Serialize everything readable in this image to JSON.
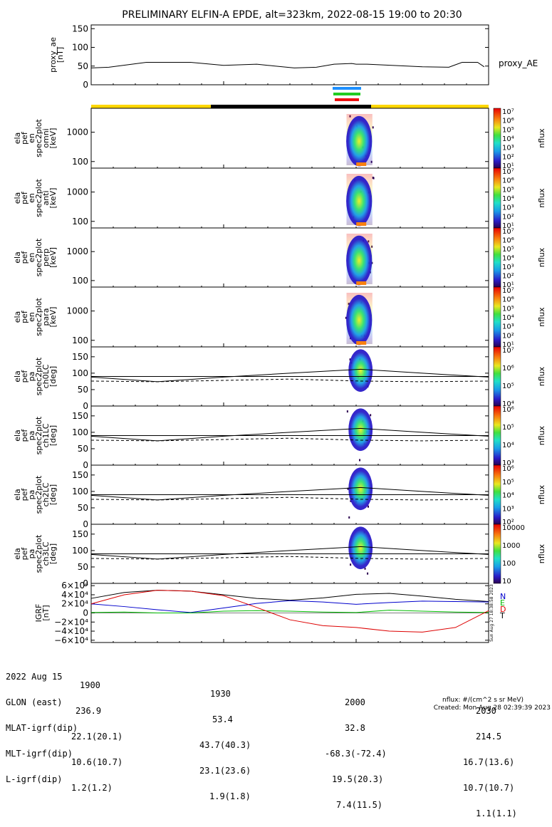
{
  "title": "PRELIMINARY ELFIN-A EPDE, alt=323km, 2022-08-15 19:00 to 20:30",
  "colors": {
    "status_yellow": "#ffd700",
    "status_black": "#000000",
    "bar_blue": "#1e90ff",
    "bar_green": "#22cc22",
    "bar_red": "#ee1111",
    "igrf_n": "#0000cc",
    "igrf_e": "#00bb00",
    "igrf_d": "#dd0000",
    "igrf_t": "#000000"
  },
  "chart_data": [
    {
      "type": "line",
      "panel": "proxy_ae",
      "ylabel_lines": [
        "proxy_ae",
        "[nT]"
      ],
      "legend": "proxy_AE",
      "ylim": [
        0,
        160
      ],
      "yticks": [
        "0",
        "50",
        "100",
        "150"
      ],
      "x_minutes": [
        0,
        8,
        25,
        45,
        60,
        75,
        80,
        92,
        102,
        110,
        118,
        120,
        125,
        150,
        162,
        168,
        175,
        178
      ],
      "values": [
        45,
        47,
        60,
        60,
        52,
        55,
        52,
        45,
        47,
        55,
        57,
        55,
        55,
        48,
        47,
        60,
        60,
        48
      ]
    },
    {
      "type": "heatmap",
      "panel": "omni",
      "ylabel_lines": [
        "ela",
        "pef",
        "en",
        "spec2plot",
        "omni",
        "[keV]"
      ],
      "yticks": [
        "100",
        "1000"
      ],
      "colorbar_label": "nflux",
      "colorbar_ticks": [
        "10¹",
        "10²",
        "10³",
        "10⁴",
        "10⁵",
        "10⁶",
        "10⁷"
      ]
    },
    {
      "type": "heatmap",
      "panel": "anti",
      "ylabel_lines": [
        "ela",
        "pef",
        "en",
        "spec2plot",
        "anti",
        "[keV]"
      ],
      "yticks": [
        "100",
        "1000"
      ],
      "colorbar_label": "nflux",
      "colorbar_ticks": [
        "10¹",
        "10²",
        "10³",
        "10⁴",
        "10⁵",
        "10⁶",
        "10⁷"
      ]
    },
    {
      "type": "heatmap",
      "panel": "perp",
      "ylabel_lines": [
        "ela",
        "pef",
        "en",
        "spec2plot",
        "perp",
        "[keV]"
      ],
      "yticks": [
        "100",
        "1000"
      ],
      "colorbar_label": "nflux",
      "colorbar_ticks": [
        "10¹",
        "10²",
        "10³",
        "10⁴",
        "10⁵",
        "10⁶",
        "10⁷"
      ]
    },
    {
      "type": "heatmap",
      "panel": "para",
      "ylabel_lines": [
        "ela",
        "pef",
        "en",
        "spec2plot",
        "para",
        "[keV]"
      ],
      "yticks": [
        "100",
        "1000"
      ],
      "colorbar_label": "nflux",
      "colorbar_ticks": [
        "10¹",
        "10²",
        "10³",
        "10⁴",
        "10⁵",
        "10⁶",
        "10⁷"
      ]
    },
    {
      "type": "heatmap",
      "panel": "ch0LC",
      "ylabel_lines": [
        "ela",
        "pef",
        "pa",
        "spec2plot",
        "ch0LC",
        "[deg]"
      ],
      "ylim": [
        0,
        180
      ],
      "yticks": [
        "0",
        "50",
        "100",
        "150"
      ],
      "colorbar_label": "nflux",
      "colorbar_ticks": [
        "10⁴",
        "10⁵",
        "10⁶",
        "10⁷"
      ]
    },
    {
      "type": "heatmap",
      "panel": "ch1LC",
      "ylabel_lines": [
        "ela",
        "pef",
        "pa",
        "spec2plot",
        "ch1LC",
        "[deg]"
      ],
      "ylim": [
        0,
        180
      ],
      "yticks": [
        "0",
        "50",
        "100",
        "150"
      ],
      "colorbar_label": "nflux",
      "colorbar_ticks": [
        "10³",
        "10⁴",
        "10⁵",
        "10⁶"
      ]
    },
    {
      "type": "heatmap",
      "panel": "ch2LC",
      "ylabel_lines": [
        "ela",
        "pef",
        "pa",
        "spec2plot",
        "ch2LC",
        "[deg]"
      ],
      "ylim": [
        0,
        180
      ],
      "yticks": [
        "0",
        "50",
        "100",
        "150"
      ],
      "colorbar_label": "nflux",
      "colorbar_ticks": [
        "10²",
        "10³",
        "10⁴",
        "10⁵",
        "10⁶"
      ]
    },
    {
      "type": "heatmap",
      "panel": "ch3LC",
      "ylabel_lines": [
        "ela",
        "pef",
        "pa",
        "spec2plot",
        "ch3LC",
        "[deg]"
      ],
      "ylim": [
        0,
        180
      ],
      "yticks": [
        "0",
        "50",
        "100",
        "150"
      ],
      "colorbar_label": "nflux",
      "colorbar_ticks": [
        "10",
        "100",
        "1000",
        "10000"
      ]
    },
    {
      "type": "line",
      "panel": "igrf",
      "ylabel_lines": [
        "IGRF",
        "[nT]"
      ],
      "ylim": [
        -65000,
        65000
      ],
      "yticks": [
        "6×10⁴",
        "4×10⁴",
        "2×10⁴",
        "0",
        "−2×10⁴",
        "−4×10⁴",
        "−6×10⁴"
      ],
      "legend": [
        "N",
        "E",
        "D",
        "T"
      ],
      "x_minutes": [
        0,
        15,
        30,
        45,
        60,
        75,
        90,
        105,
        120,
        135,
        150,
        165,
        180
      ],
      "series": [
        {
          "name": "T",
          "values": [
            32000,
            45000,
            50000,
            48000,
            40000,
            32000,
            28000,
            33000,
            41000,
            43000,
            37000,
            30000,
            25000
          ]
        },
        {
          "name": "N",
          "values": [
            20000,
            14000,
            7000,
            1000,
            11000,
            21000,
            27000,
            24000,
            19000,
            23000,
            26000,
            25000,
            24000
          ]
        },
        {
          "name": "E",
          "values": [
            1000,
            2000,
            0,
            0,
            4000,
            5000,
            4000,
            2000,
            1000,
            6000,
            4000,
            2000,
            1000
          ]
        },
        {
          "name": "D",
          "values": [
            20000,
            40000,
            50000,
            48000,
            38000,
            12000,
            -15000,
            -28000,
            -32000,
            -40000,
            -42000,
            -32000,
            5000
          ]
        }
      ]
    }
  ],
  "xticks": [
    "1900",
    "1930",
    "2000",
    "2030"
  ],
  "orbit_table": {
    "rows": [
      {
        "label": "2022 Aug 15",
        "vals": [
          "1900",
          "1930",
          "2000",
          "2030"
        ]
      },
      {
        "label": "GLON (east)",
        "vals": [
          "236.9",
          "53.4",
          "32.8",
          "214.5"
        ]
      },
      {
        "label": "MLAT-igrf(dip)",
        "vals": [
          "22.1(20.1)",
          "43.7(40.3)",
          "-68.3(-72.4)",
          "16.7(13.6)"
        ]
      },
      {
        "label": "MLT-igrf(dip)",
        "vals": [
          "10.6(10.7)",
          "23.1(23.6)",
          "19.5(20.3)",
          "10.7(10.7)"
        ]
      },
      {
        "label": "L-igrf(dip)",
        "vals": [
          "1.2(1.2)",
          "1.9(1.8)",
          "7.4(11.5)",
          "1.1(1.1)"
        ]
      }
    ]
  },
  "footer": {
    "units": "nflux: #/(cm^2 s sr MeV)",
    "created": "Created: Mon Aug 28 02:39:39 2023",
    "side_stamp": "Sun Aug 27 18:38:58 2023"
  }
}
